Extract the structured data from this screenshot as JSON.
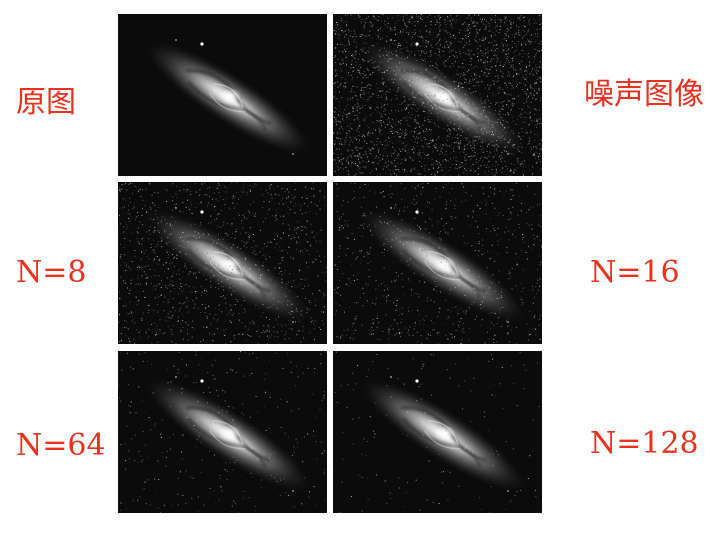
{
  "labels": {
    "original": "原图",
    "noisy": "噪声图像",
    "n8": "N=8",
    "n16": "N=16",
    "n64": "N=64",
    "n128": "N=128"
  },
  "colors": {
    "label": "#e8321e",
    "background": "#ffffff",
    "panel": "#0a0a0a"
  },
  "panels": [
    {
      "name": "original-image",
      "noise": 0.0
    },
    {
      "name": "noisy-image",
      "noise": 1.0
    },
    {
      "name": "average-n8-image",
      "noise": 0.45
    },
    {
      "name": "average-n16-image",
      "noise": 0.3
    },
    {
      "name": "average-n64-image",
      "noise": 0.12
    },
    {
      "name": "average-n128-image",
      "noise": 0.06
    }
  ]
}
